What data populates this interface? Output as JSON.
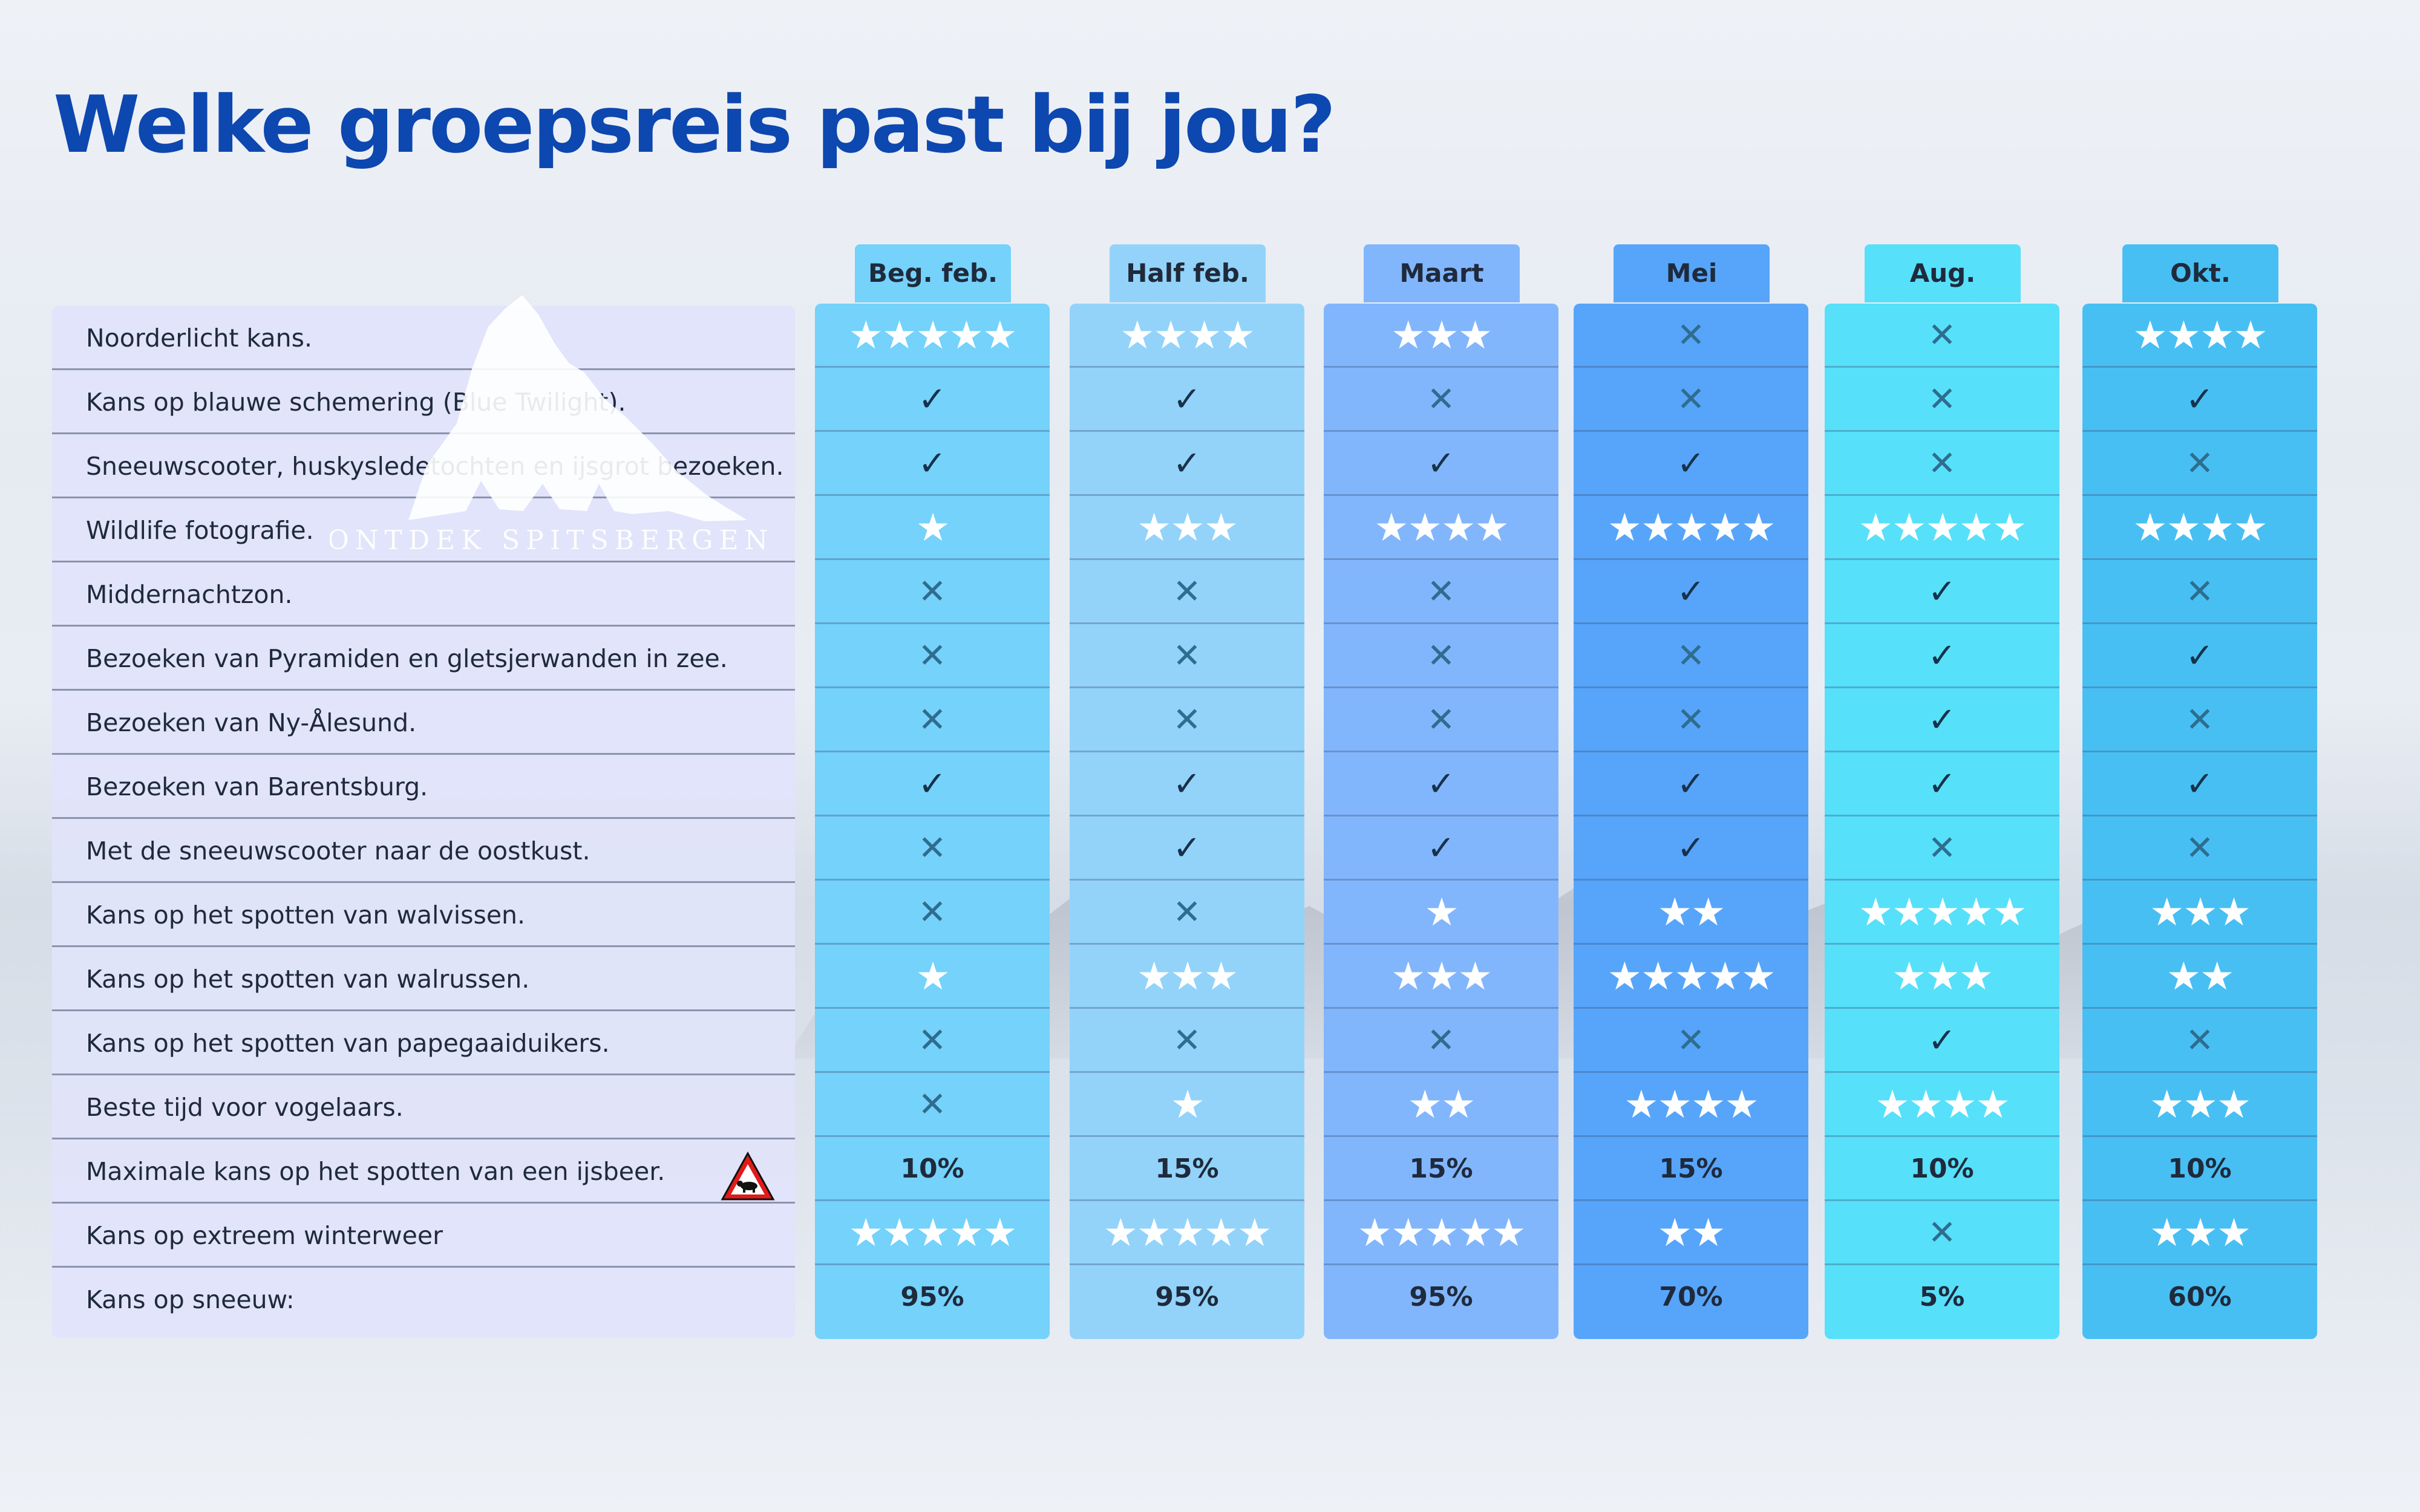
{
  "title": "Welke groepsreis past bij jou?",
  "logo_text": "ONTDEK SPITSBERGEN",
  "rows": [
    "Noorderlicht kans.",
    "Kans op blauwe schemering (Blue Twilight).",
    "Sneeuwscooter, huskysledetochten en ijsgrot bezoeken.",
    "Wildlife fotografie.",
    "Middernachtzon.",
    "Bezoeken van Pyramiden en gletsjerwanden in zee.",
    "Bezoeken van Ny-Ålesund.",
    "Bezoeken van Barentsburg.",
    "Met de sneeuwscooter naar de oostkust.",
    "Kans op het spotten van walvissen.",
    "Kans op het spotten van walrussen.",
    "Kans op het spotten van papegaaiduikers.",
    "Beste tijd voor vogelaars.",
    "Maximale kans op het spotten van een ijsbeer.",
    "Kans op extreem winterweer",
    "Kans op sneeuw:"
  ],
  "columns": [
    {
      "label": "Beg. feb.",
      "color": "#74d2fb",
      "tab_color": "#74d2fb",
      "values": [
        "★★★★★",
        "✓",
        "✓",
        "★",
        "✕",
        "✕",
        "✕",
        "✓",
        "✕",
        "✕",
        "★",
        "✕",
        "✕",
        "10%",
        "★★★★★",
        "95%"
      ]
    },
    {
      "label": "Half feb.",
      "color": "#93d3fa",
      "tab_color": "#93d3fa",
      "values": [
        "★★★★",
        "✓",
        "✓",
        "★★★",
        "✕",
        "✕",
        "✕",
        "✓",
        "✓",
        "✕",
        "★★★",
        "✕",
        "★",
        "15%",
        "★★★★★",
        "95%"
      ]
    },
    {
      "label": "Maart",
      "color": "#82b6fc",
      "tab_color": "#82b6fc",
      "values": [
        "★★★",
        "✕",
        "✓",
        "★★★★",
        "✕",
        "✕",
        "✕",
        "✓",
        "✓",
        "★",
        "★★★",
        "✕",
        "★★",
        "15%",
        "★★★★★",
        "95%"
      ]
    },
    {
      "label": "Mei",
      "color": "#57a5fa",
      "tab_color": "#57a5fa",
      "values": [
        "✕",
        "✕",
        "✓",
        "★★★★★",
        "✓",
        "✕",
        "✕",
        "✓",
        "✓",
        "★★",
        "★★★★★",
        "✕",
        "★★★★",
        "15%",
        "★★",
        "70%"
      ]
    },
    {
      "label": "Aug.",
      "color": "#57e0fa",
      "tab_color": "#57e0fa",
      "values": [
        "✕",
        "✕",
        "✕",
        "★★★★★",
        "✓",
        "✓",
        "✓",
        "✓",
        "✕",
        "★★★★★",
        "★★★",
        "✓",
        "★★★★",
        "10%",
        "✕",
        "5%"
      ]
    },
    {
      "label": "Okt.",
      "color": "#48bff3",
      "tab_color": "#48bff3",
      "values": [
        "★★★★",
        "✓",
        "✕",
        "★★★★",
        "✕",
        "✓",
        "✕",
        "✓",
        "✕",
        "★★★",
        "★★",
        "✕",
        "★★★",
        "10%",
        "★★★",
        "60%"
      ]
    }
  ]
}
